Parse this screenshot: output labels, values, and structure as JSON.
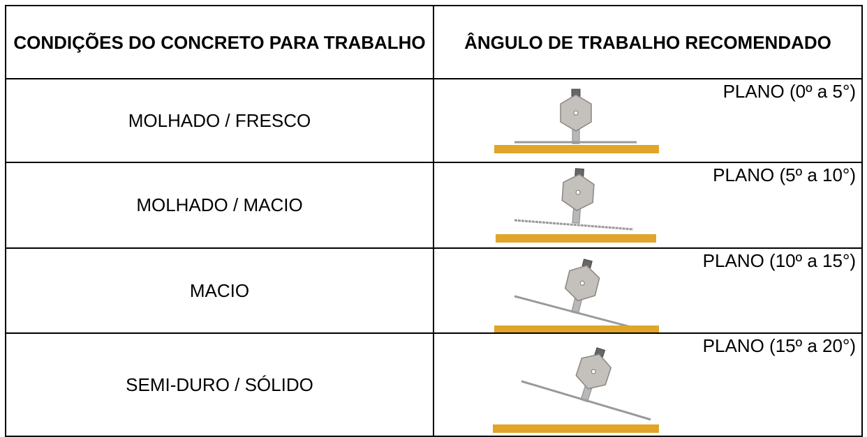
{
  "table": {
    "header": [
      "CONDIÇÕES DO CONCRETO PARA TRABALHO",
      "ÂNGULO DE TRABALHO RECOMENDADO"
    ],
    "rows": [
      [
        "MOLHADO / FRESCO",
        "PLANO (0º a 5°)"
      ],
      [
        "MOLHADO / MACIO",
        "PLANO (5º a 10°)"
      ],
      [
        "MACIO",
        "PLANO (10º a 15°)"
      ],
      [
        "SEMI-DURO / SÓLIDO",
        "PLANO (15º a 20°)"
      ]
    ]
  }
}
